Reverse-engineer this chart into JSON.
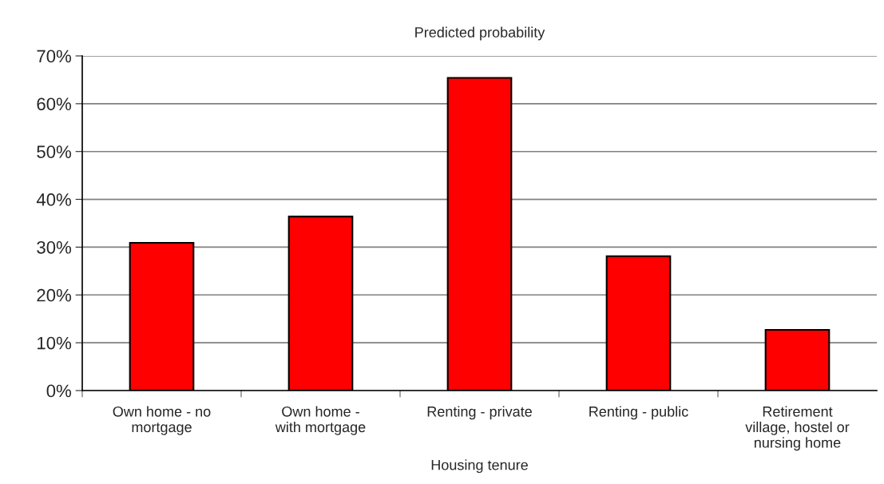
{
  "chart_data": {
    "type": "bar",
    "title": "Predicted probability",
    "xlabel": "Housing tenure",
    "categories": [
      "Own home - no\nmortgage",
      "Own home -\nwith mortgage",
      "Renting - private",
      "Renting - public",
      "Retirement\nvillage, hostel or\nnursing home"
    ],
    "values": [
      30.9,
      36.4,
      65.4,
      28.1,
      12.7
    ],
    "color": "#ff0000",
    "ylim": [
      0,
      70
    ],
    "yticks": [
      {
        "value": 0,
        "label": "0%"
      },
      {
        "value": 10,
        "label": "10%"
      },
      {
        "value": 20,
        "label": "20%"
      },
      {
        "value": 30,
        "label": "30%"
      },
      {
        "value": 40,
        "label": "40%"
      },
      {
        "value": 50,
        "label": "50%"
      },
      {
        "value": 60,
        "label": "60%"
      },
      {
        "value": 70,
        "label": "70%"
      }
    ],
    "grid": "y",
    "legend": false
  }
}
